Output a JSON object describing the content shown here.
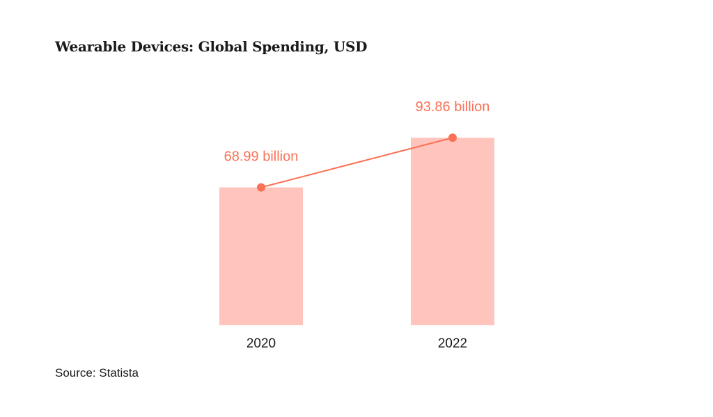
{
  "chart_data": {
    "type": "bar",
    "title": "Wearable Devices: Global Spending, USD",
    "categories": [
      "2020",
      "2022"
    ],
    "values": [
      68.99,
      93.86
    ],
    "data_labels": [
      "68.99 billion",
      "93.86 billion"
    ],
    "unit": "billion USD",
    "overlay": "line connecting bar tops",
    "ylim": [
      0,
      100
    ],
    "grid": false,
    "legend": "none",
    "colors": {
      "bar": "#ffc5bd",
      "line": "#fb7156",
      "label": "#fb7156",
      "text": "#1a1a1a"
    }
  },
  "source": "Source: Statista"
}
